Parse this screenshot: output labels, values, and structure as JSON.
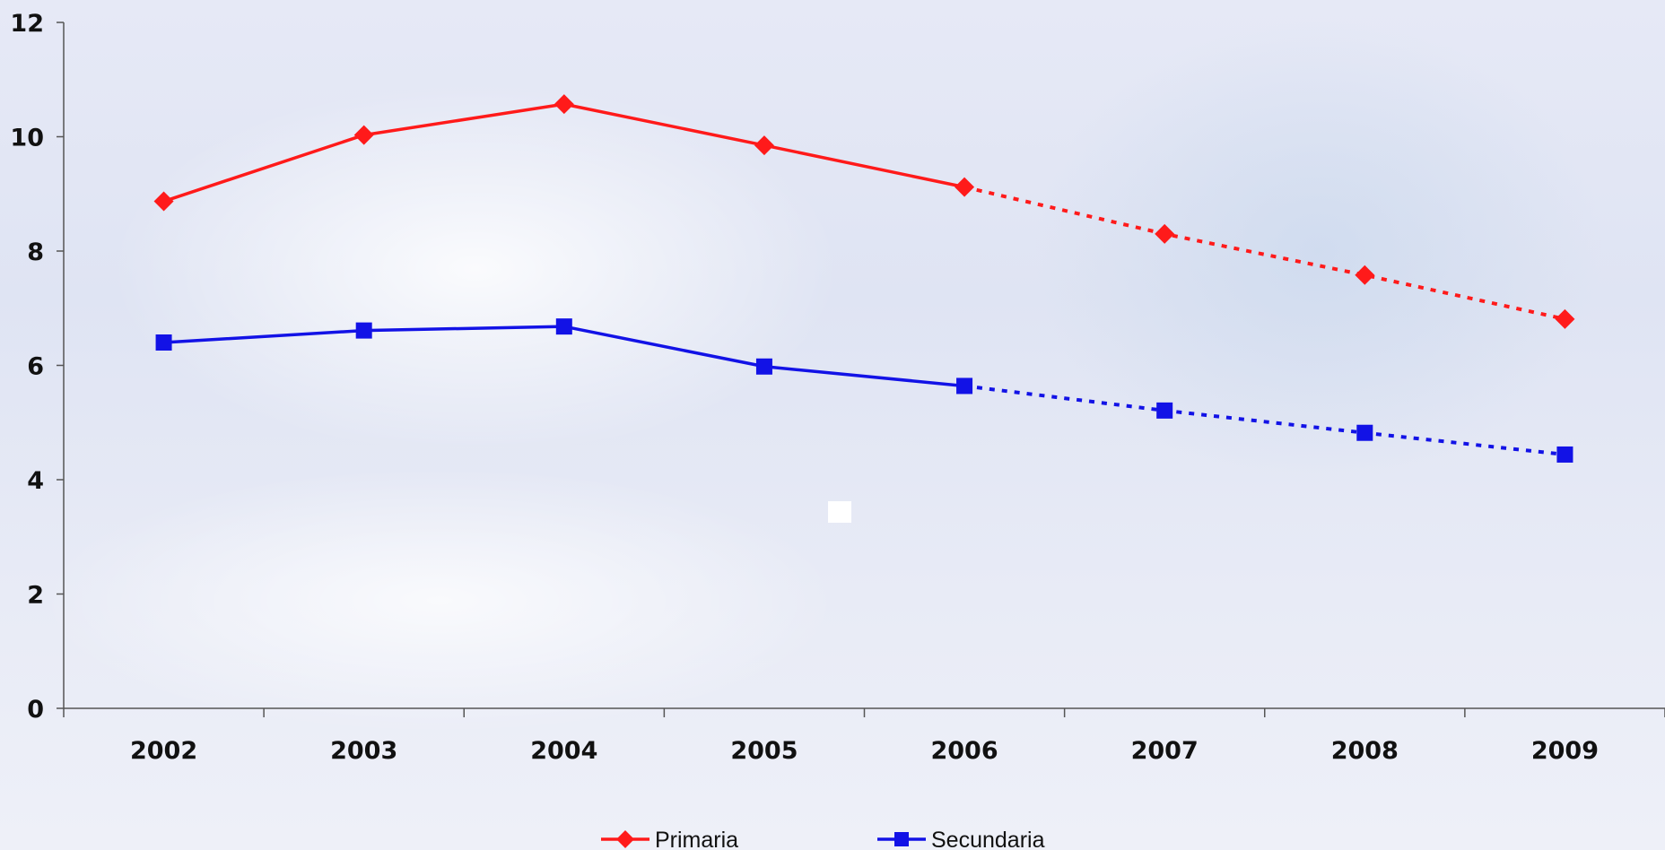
{
  "chart_data": {
    "type": "line",
    "categories": [
      "2002",
      "2003",
      "2004",
      "2005",
      "2006",
      "2007",
      "2008",
      "2009"
    ],
    "ylim": [
      0,
      12
    ],
    "yticks": [
      "0",
      "2",
      "4",
      "6",
      "8",
      "10",
      "12"
    ],
    "series": [
      {
        "name": "Primaria",
        "color": "#ff1a1a",
        "marker": "diamond",
        "values": [
          8.87,
          10.03,
          10.57,
          9.85,
          9.12,
          8.3,
          7.58,
          6.81
        ],
        "solid_until": "2006",
        "dotted_from": "2006"
      },
      {
        "name": "Secundaria",
        "color": "#1212e6",
        "marker": "square",
        "values": [
          6.4,
          6.61,
          6.68,
          5.98,
          5.64,
          5.21,
          4.82,
          4.44
        ],
        "solid_until": "2006",
        "dotted_from": "2006"
      }
    ],
    "legend_position": "bottom",
    "grid": false
  }
}
